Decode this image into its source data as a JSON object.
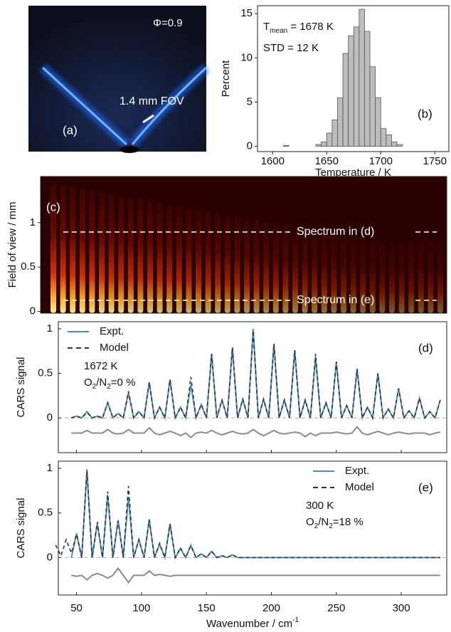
{
  "photo": {
    "label": "(a)",
    "phi": "Φ=0.9",
    "fov": "1.4 mm FOV"
  },
  "chart_data": [
    {
      "type": "histogram",
      "panel_label": "(b)",
      "x_label": "Temperature / K",
      "y_label": "Percent",
      "bins": [
        1610,
        1615,
        1620,
        1625,
        1630,
        1635,
        1640,
        1645,
        1650,
        1655,
        1660,
        1665,
        1670,
        1675,
        1680,
        1685,
        1690,
        1695,
        1700,
        1705,
        1710,
        1715,
        1720
      ],
      "counts": [
        0.1,
        0,
        0,
        0,
        0,
        0,
        0.2,
        0.5,
        1.5,
        3,
        5.5,
        10.5,
        12.5,
        13.5,
        15.5,
        13,
        9,
        5.5,
        2,
        1.3,
        0.5,
        0.2
      ],
      "color": "#bdbdbd",
      "xlim": [
        1586,
        1763
      ],
      "xticks": [
        1600,
        1650,
        1700,
        1750
      ],
      "ylim": [
        -0.6,
        15.9
      ],
      "yticks": [
        0,
        5,
        10,
        15
      ],
      "stats": [
        {
          "parts": [
            "T",
            "mean",
            " = 1678 K"
          ]
        },
        {
          "parts": [
            "STD = 12 K"
          ]
        }
      ]
    },
    {
      "type": "heatmap",
      "panel_label": "(c)",
      "y_label": "Field of view / mm",
      "ylim": [
        -0.02,
        1.52
      ],
      "yticks": [
        0,
        0.5,
        1
      ],
      "annotations": [
        "Spectrum in (d)",
        "Spectrum in (e)"
      ]
    },
    {
      "type": "line",
      "panel_label": "(d)",
      "y_label": "CARS signal",
      "legend": "upper left",
      "zero_line": true,
      "x": [
        46,
        50,
        54,
        58,
        62,
        66,
        70,
        74,
        78,
        82,
        86,
        90,
        94,
        98,
        102,
        106,
        110,
        114,
        118,
        122,
        126,
        130,
        134,
        138,
        142,
        146,
        150,
        154,
        158,
        162,
        166,
        170,
        174,
        178,
        182,
        186,
        190,
        194,
        198,
        202,
        206,
        210,
        214,
        218,
        222,
        226,
        230,
        234,
        238,
        242,
        246,
        250,
        254,
        258,
        262,
        266,
        270,
        274,
        278,
        282,
        286,
        290,
        294,
        298,
        302,
        306,
        310,
        314,
        318,
        322,
        326,
        330
      ],
      "series": [
        {
          "name": "Expt.",
          "color": "#4a90c8",
          "values": [
            0,
            0.02,
            0,
            0.07,
            0,
            0.02,
            0,
            0.17,
            0,
            0.05,
            0,
            0.28,
            0,
            0.07,
            0,
            0.4,
            0,
            0.12,
            0,
            0.43,
            0,
            0.12,
            0,
            0.37,
            0,
            0.15,
            0,
            0.72,
            0,
            0.2,
            0,
            0.79,
            0,
            0.21,
            0,
            1,
            0,
            0.21,
            0,
            0.83,
            0,
            0.2,
            0,
            0.76,
            0,
            0.2,
            0,
            0.68,
            0,
            0.17,
            0,
            0.63,
            0,
            0.14,
            0,
            0.55,
            0,
            0.12,
            0,
            0.5,
            0,
            0.1,
            0,
            0.33,
            0,
            0.08,
            0,
            0.22,
            0,
            0.07,
            0,
            0.2
          ]
        },
        {
          "name": "Model",
          "color": "#333333",
          "dash": true,
          "values": [
            0,
            0.02,
            0,
            0.06,
            0,
            0.02,
            0,
            0.17,
            0,
            0.05,
            0,
            0.3,
            0,
            0.07,
            0,
            0.4,
            0,
            0.12,
            0,
            0.43,
            0,
            0.12,
            0,
            0.46,
            0,
            0.15,
            0,
            0.72,
            0,
            0.2,
            0,
            0.79,
            0,
            0.21,
            0,
            0.98,
            0,
            0.21,
            0,
            0.83,
            0,
            0.2,
            0,
            0.76,
            0,
            0.2,
            0,
            0.72,
            0,
            0.17,
            0,
            0.63,
            0,
            0.14,
            0,
            0.55,
            0,
            0.12,
            0,
            0.5,
            0,
            0.1,
            0,
            0.33,
            0,
            0.08,
            0,
            0.22,
            0,
            0.07,
            0,
            0.2
          ]
        },
        {
          "color": "#8c8c8c",
          "values": [
            -0.17,
            -0.17,
            -0.17,
            -0.14,
            -0.17,
            -0.17,
            -0.17,
            -0.13,
            -0.17,
            -0.18,
            -0.17,
            -0.13,
            -0.17,
            -0.17,
            -0.17,
            -0.11,
            -0.17,
            -0.19,
            -0.17,
            -0.15,
            -0.17,
            -0.2,
            -0.17,
            -0.22,
            -0.17,
            -0.16,
            -0.17,
            -0.14,
            -0.17,
            -0.19,
            -0.17,
            -0.15,
            -0.17,
            -0.18,
            -0.17,
            -0.13,
            -0.17,
            -0.2,
            -0.17,
            -0.14,
            -0.17,
            -0.18,
            -0.17,
            -0.16,
            -0.17,
            -0.21,
            -0.17,
            -0.2,
            -0.17,
            -0.17,
            -0.17,
            -0.16,
            -0.17,
            -0.18,
            -0.17,
            -0.1,
            -0.17,
            -0.19,
            -0.17,
            -0.15,
            -0.17,
            -0.19,
            -0.17,
            -0.16,
            -0.17,
            -0.18,
            -0.17,
            -0.17,
            -0.17,
            -0.19,
            -0.17,
            -0.16
          ]
        }
      ],
      "annotations": [
        {
          "parts": [
            "1672 K"
          ]
        },
        {
          "parts": [
            "O",
            "2",
            "/N",
            "2",
            "=0 %"
          ]
        }
      ],
      "xlim": [
        36,
        335
      ],
      "xticks": [
        50,
        100,
        150,
        200,
        250,
        300
      ],
      "ylim": [
        -0.39,
        1.08
      ],
      "yticks": [
        0,
        0.5,
        1
      ]
    },
    {
      "type": "line",
      "panel_label": "(e)",
      "y_label": "CARS signal",
      "legend": "upper right",
      "zero_line": true,
      "x_label": {
        "parts": [
          "Wavenumber / cm",
          "-1"
        ]
      },
      "x": [
        34,
        38,
        42,
        46,
        50,
        54,
        58,
        62,
        66,
        70,
        74,
        78,
        82,
        86,
        90,
        94,
        98,
        102,
        106,
        110,
        114,
        118,
        122,
        126,
        130,
        134,
        138,
        142,
        146,
        150,
        154,
        158,
        162,
        166,
        170,
        174,
        178,
        182,
        186,
        190,
        194,
        198,
        202,
        206,
        210,
        214,
        218,
        222,
        226,
        230,
        234,
        238,
        242,
        246,
        250,
        254,
        258,
        262,
        266,
        270,
        274,
        278,
        282,
        286,
        290,
        294,
        298,
        302,
        306,
        310,
        314,
        318,
        322,
        326,
        330
      ],
      "series": [
        {
          "name": "Expt.",
          "color": "#4a90c8",
          "values": [
            null,
            null,
            null,
            0,
            0.27,
            0,
            0.99,
            0,
            0.38,
            0,
            0.7,
            0,
            0.42,
            0,
            0.68,
            0,
            0.2,
            0,
            0.43,
            0,
            0.15,
            0,
            0.38,
            0,
            0.1,
            0,
            0.14,
            0,
            0.04,
            0,
            0.07,
            0,
            0.02,
            0,
            0.03,
            0,
            0,
            0,
            0,
            0,
            0,
            0,
            0,
            0,
            0,
            0,
            0,
            0,
            0,
            0,
            0,
            0,
            0,
            0,
            0,
            0,
            0,
            0,
            0,
            0,
            0,
            0,
            0,
            0,
            0,
            0,
            0,
            0,
            0,
            0,
            0,
            0,
            0,
            0,
            0
          ]
        },
        {
          "name": "Model",
          "color": "#333333",
          "dash": true,
          "values": [
            0.14,
            0.02,
            0.2,
            0.05,
            0.26,
            0,
            0.97,
            0,
            0.4,
            0,
            0.74,
            0,
            0.41,
            0,
            0.8,
            0,
            0.2,
            0,
            0.42,
            0,
            0.16,
            0,
            0.37,
            0,
            0.11,
            0,
            0.13,
            0,
            0.04,
            0,
            0.07,
            0,
            0.02,
            0,
            0.03,
            0,
            0,
            0,
            0,
            0,
            0,
            0,
            0,
            0,
            0,
            0,
            0,
            0,
            0,
            0,
            0,
            0,
            0,
            0,
            0,
            0,
            0,
            0,
            0,
            0,
            0,
            0,
            0,
            0,
            0,
            0,
            0,
            0,
            0,
            0,
            0,
            0,
            0,
            0,
            0
          ]
        },
        {
          "color": "#8c8c8c",
          "values": [
            null,
            null,
            null,
            -0.2,
            -0.21,
            -0.2,
            -0.25,
            -0.2,
            -0.18,
            -0.2,
            -0.23,
            -0.2,
            -0.12,
            -0.2,
            -0.28,
            -0.2,
            -0.2,
            -0.2,
            -0.15,
            -0.2,
            -0.19,
            -0.2,
            -0.21,
            -0.2,
            -0.2,
            -0.2,
            -0.2,
            -0.2,
            -0.2,
            -0.2,
            -0.2,
            -0.2,
            -0.2,
            -0.2,
            -0.2,
            -0.2,
            -0.2,
            -0.2,
            -0.2,
            -0.2,
            -0.2,
            -0.2,
            -0.2,
            -0.2,
            -0.2,
            -0.2,
            -0.2,
            -0.2,
            -0.2,
            -0.2,
            -0.2,
            -0.2,
            -0.2,
            -0.2,
            -0.2,
            -0.2,
            -0.2,
            -0.2,
            -0.2,
            -0.2,
            -0.2,
            -0.2,
            -0.2,
            -0.2,
            -0.2,
            -0.2,
            -0.2,
            -0.2,
            -0.2,
            -0.2,
            -0.2,
            -0.2,
            -0.2,
            -0.2,
            -0.2
          ]
        }
      ],
      "annotations": [
        {
          "parts": [
            "300 K"
          ]
        },
        {
          "parts": [
            "O",
            "2",
            "/N",
            "2",
            "=18 %"
          ]
        }
      ],
      "xlim": [
        36,
        335
      ],
      "xticks": [
        50,
        100,
        150,
        200,
        250,
        300
      ],
      "ylim": [
        -0.42,
        1.08
      ],
      "yticks": [
        0,
        0.5,
        1
      ]
    }
  ]
}
